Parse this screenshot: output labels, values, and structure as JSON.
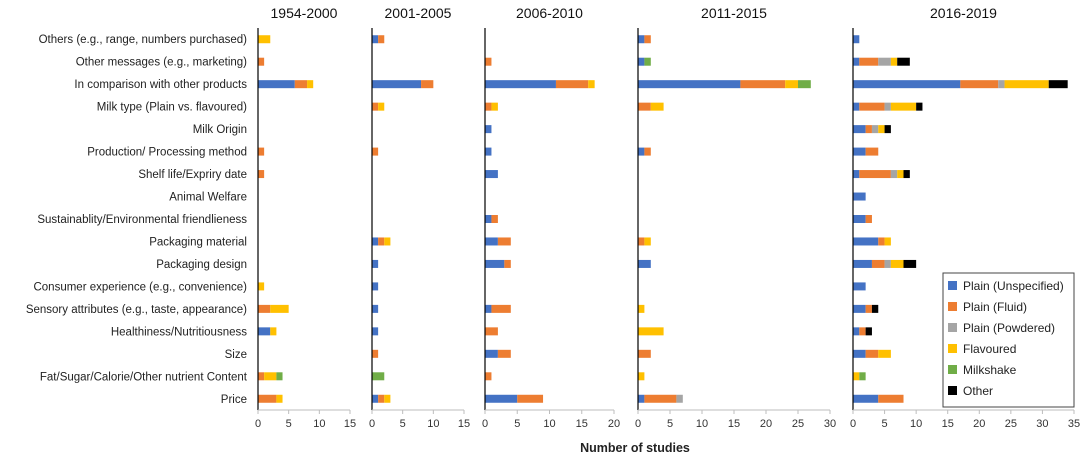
{
  "chart_data": {
    "type": "bar",
    "orientation": "horizontal",
    "stacked": true,
    "xlabel": "Number of studies",
    "categories": [
      "Others (e.g., range, numbers purchased)",
      "Other messages (e.g., marketing)",
      "In comparison with other products",
      "Milk type (Plain vs. flavoured)",
      "Milk Origin",
      "Production/ Processing method",
      "Shelf life/Expriry date",
      "Animal Welfare",
      "Sustainablity/Environmental friendlieness",
      "Packaging material",
      "Packaging design",
      "Consumer experience (e.g., convenience)",
      "Sensory attributes (e.g., taste, appearance)",
      "Healthiness/Nutritiousness",
      "Size",
      "Fat/Sugar/Calorie/Other nutrient Content",
      "Price"
    ],
    "series_names": [
      "Plain (Unspecified)",
      "Plain (Fluid)",
      "Plain (Powdered)",
      "Flavoured",
      "Milkshake",
      "Other"
    ],
    "colors": [
      "#4472c4",
      "#ed7d31",
      "#a5a5a5",
      "#ffc000",
      "#70ad47",
      "#000000"
    ],
    "panels": [
      {
        "title": "1954-2000",
        "xlim": [
          0,
          15
        ],
        "ticks": [
          "0",
          "5",
          "10",
          "15"
        ],
        "values": [
          [
            0,
            0,
            0,
            2,
            0,
            0
          ],
          [
            0,
            1,
            0,
            0,
            0,
            0
          ],
          [
            6,
            2,
            0,
            1,
            0,
            0
          ],
          [
            0,
            0,
            0,
            0,
            0,
            0
          ],
          [
            0,
            0,
            0,
            0,
            0,
            0
          ],
          [
            0,
            1,
            0,
            0,
            0,
            0
          ],
          [
            0,
            1,
            0,
            0,
            0,
            0
          ],
          [
            0,
            0,
            0,
            0,
            0,
            0
          ],
          [
            0,
            0,
            0,
            0,
            0,
            0
          ],
          [
            0,
            0,
            0,
            0,
            0,
            0
          ],
          [
            0,
            0,
            0,
            0,
            0,
            0
          ],
          [
            0,
            0,
            0,
            1,
            0,
            0
          ],
          [
            0,
            2,
            0,
            3,
            0,
            0
          ],
          [
            2,
            0,
            0,
            1,
            0,
            0
          ],
          [
            0,
            0,
            0,
            0,
            0,
            0
          ],
          [
            0,
            1,
            0,
            2,
            1,
            0
          ],
          [
            0,
            3,
            0,
            1,
            0,
            0
          ]
        ]
      },
      {
        "title": "2001-2005",
        "xlim": [
          0,
          15
        ],
        "ticks": [
          "0",
          "5",
          "10",
          "15"
        ],
        "values": [
          [
            1,
            1,
            0,
            0,
            0,
            0
          ],
          [
            0,
            0,
            0,
            0,
            0,
            0
          ],
          [
            8,
            2,
            0,
            0,
            0,
            0
          ],
          [
            0,
            1,
            0,
            1,
            0,
            0
          ],
          [
            0,
            0,
            0,
            0,
            0,
            0
          ],
          [
            0,
            1,
            0,
            0,
            0,
            0
          ],
          [
            0,
            0,
            0,
            0,
            0,
            0
          ],
          [
            0,
            0,
            0,
            0,
            0,
            0
          ],
          [
            0,
            0,
            0,
            0,
            0,
            0
          ],
          [
            1,
            1,
            0,
            1,
            0,
            0
          ],
          [
            1,
            0,
            0,
            0,
            0,
            0
          ],
          [
            1,
            0,
            0,
            0,
            0,
            0
          ],
          [
            1,
            0,
            0,
            0,
            0,
            0
          ],
          [
            1,
            0,
            0,
            0,
            0,
            0
          ],
          [
            0,
            1,
            0,
            0,
            0,
            0
          ],
          [
            0,
            0,
            0,
            0,
            2,
            0
          ],
          [
            1,
            1,
            0,
            1,
            0,
            0
          ]
        ]
      },
      {
        "title": "2006-2010",
        "xlim": [
          0,
          20
        ],
        "ticks": [
          "0",
          "5",
          "10",
          "15",
          "20"
        ],
        "values": [
          [
            0,
            0,
            0,
            0,
            0,
            0
          ],
          [
            0,
            1,
            0,
            0,
            0,
            0
          ],
          [
            11,
            5,
            0,
            1,
            0,
            0
          ],
          [
            0,
            1,
            0,
            1,
            0,
            0
          ],
          [
            1,
            0,
            0,
            0,
            0,
            0
          ],
          [
            1,
            0,
            0,
            0,
            0,
            0
          ],
          [
            2,
            0,
            0,
            0,
            0,
            0
          ],
          [
            0,
            0,
            0,
            0,
            0,
            0
          ],
          [
            1,
            1,
            0,
            0,
            0,
            0
          ],
          [
            2,
            2,
            0,
            0,
            0,
            0
          ],
          [
            3,
            1,
            0,
            0,
            0,
            0
          ],
          [
            0,
            0,
            0,
            0,
            0,
            0
          ],
          [
            1,
            3,
            0,
            0,
            0,
            0
          ],
          [
            0,
            2,
            0,
            0,
            0,
            0
          ],
          [
            2,
            2,
            0,
            0,
            0,
            0
          ],
          [
            0,
            1,
            0,
            0,
            0,
            0
          ],
          [
            5,
            4,
            0,
            0,
            0,
            0
          ]
        ]
      },
      {
        "title": "2011-2015",
        "xlim": [
          0,
          30
        ],
        "ticks": [
          "0",
          "5",
          "10",
          "15",
          "20",
          "25",
          "30"
        ],
        "values": [
          [
            1,
            1,
            0,
            0,
            0,
            0
          ],
          [
            1,
            0,
            0,
            0,
            1,
            0
          ],
          [
            16,
            7,
            0,
            2,
            2,
            0
          ],
          [
            0,
            2,
            0,
            2,
            0,
            0
          ],
          [
            0,
            0,
            0,
            0,
            0,
            0
          ],
          [
            1,
            1,
            0,
            0,
            0,
            0
          ],
          [
            0,
            0,
            0,
            0,
            0,
            0
          ],
          [
            0,
            0,
            0,
            0,
            0,
            0
          ],
          [
            0,
            0,
            0,
            0,
            0,
            0
          ],
          [
            0,
            1,
            0,
            1,
            0,
            0
          ],
          [
            2,
            0,
            0,
            0,
            0,
            0
          ],
          [
            0,
            0,
            0,
            0,
            0,
            0
          ],
          [
            0,
            0,
            0,
            1,
            0,
            0
          ],
          [
            0,
            0,
            0,
            4,
            0,
            0
          ],
          [
            0,
            2,
            0,
            0,
            0,
            0
          ],
          [
            0,
            0,
            0,
            1,
            0,
            0
          ],
          [
            1,
            5,
            1,
            0,
            0,
            0
          ]
        ]
      },
      {
        "title": "2016-2019",
        "xlim": [
          0,
          35
        ],
        "ticks": [
          "0",
          "5",
          "10",
          "15",
          "20",
          "25",
          "30",
          "35"
        ],
        "values": [
          [
            1,
            0,
            0,
            0,
            0,
            0
          ],
          [
            1,
            3,
            2,
            1,
            0,
            2
          ],
          [
            17,
            6,
            1,
            7,
            0,
            3
          ],
          [
            1,
            4,
            1,
            4,
            0,
            1
          ],
          [
            2,
            1,
            1,
            1,
            0,
            1
          ],
          [
            2,
            2,
            0,
            0,
            0,
            0
          ],
          [
            1,
            5,
            1,
            1,
            0,
            1
          ],
          [
            2,
            0,
            0,
            0,
            0,
            0
          ],
          [
            2,
            1,
            0,
            0,
            0,
            0
          ],
          [
            4,
            1,
            0,
            1,
            0,
            0
          ],
          [
            3,
            2,
            1,
            2,
            0,
            2
          ],
          [
            2,
            0,
            0,
            0,
            0,
            0
          ],
          [
            2,
            1,
            0,
            0,
            0,
            1
          ],
          [
            1,
            1,
            0,
            0,
            0,
            1
          ],
          [
            2,
            2,
            0,
            2,
            0,
            0
          ],
          [
            0,
            0,
            0,
            1,
            1,
            0
          ],
          [
            4,
            4,
            0,
            0,
            0,
            0
          ]
        ]
      }
    ],
    "legend": {
      "position": "bottom-right",
      "entries": [
        "Plain (Unspecified)",
        "Plain (Fluid)",
        "Plain (Powdered)",
        "Flavoured",
        "Milkshake",
        "Other"
      ]
    }
  }
}
